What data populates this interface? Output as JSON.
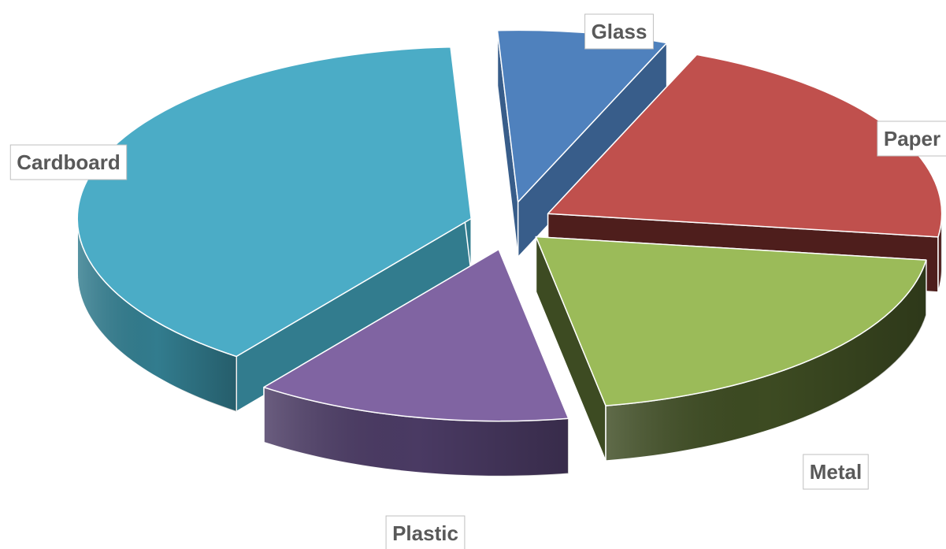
{
  "chart_data": {
    "type": "pie",
    "style": "3d-exploded",
    "categories": [
      "Glass",
      "Paper",
      "Metal",
      "Plastic",
      "Cardboard"
    ],
    "values": [
      7,
      21,
      20,
      13,
      39
    ],
    "colors": [
      "#4f81bd",
      "#c0504d",
      "#9bbb59",
      "#8064a2",
      "#4bacc6"
    ],
    "side_colors": [
      "#385d8a",
      "#4e1e1c",
      "#3d4b22",
      "#4a3a63",
      "#327c8e"
    ],
    "title": "",
    "legend": "none",
    "data_labels": "category-name"
  }
}
